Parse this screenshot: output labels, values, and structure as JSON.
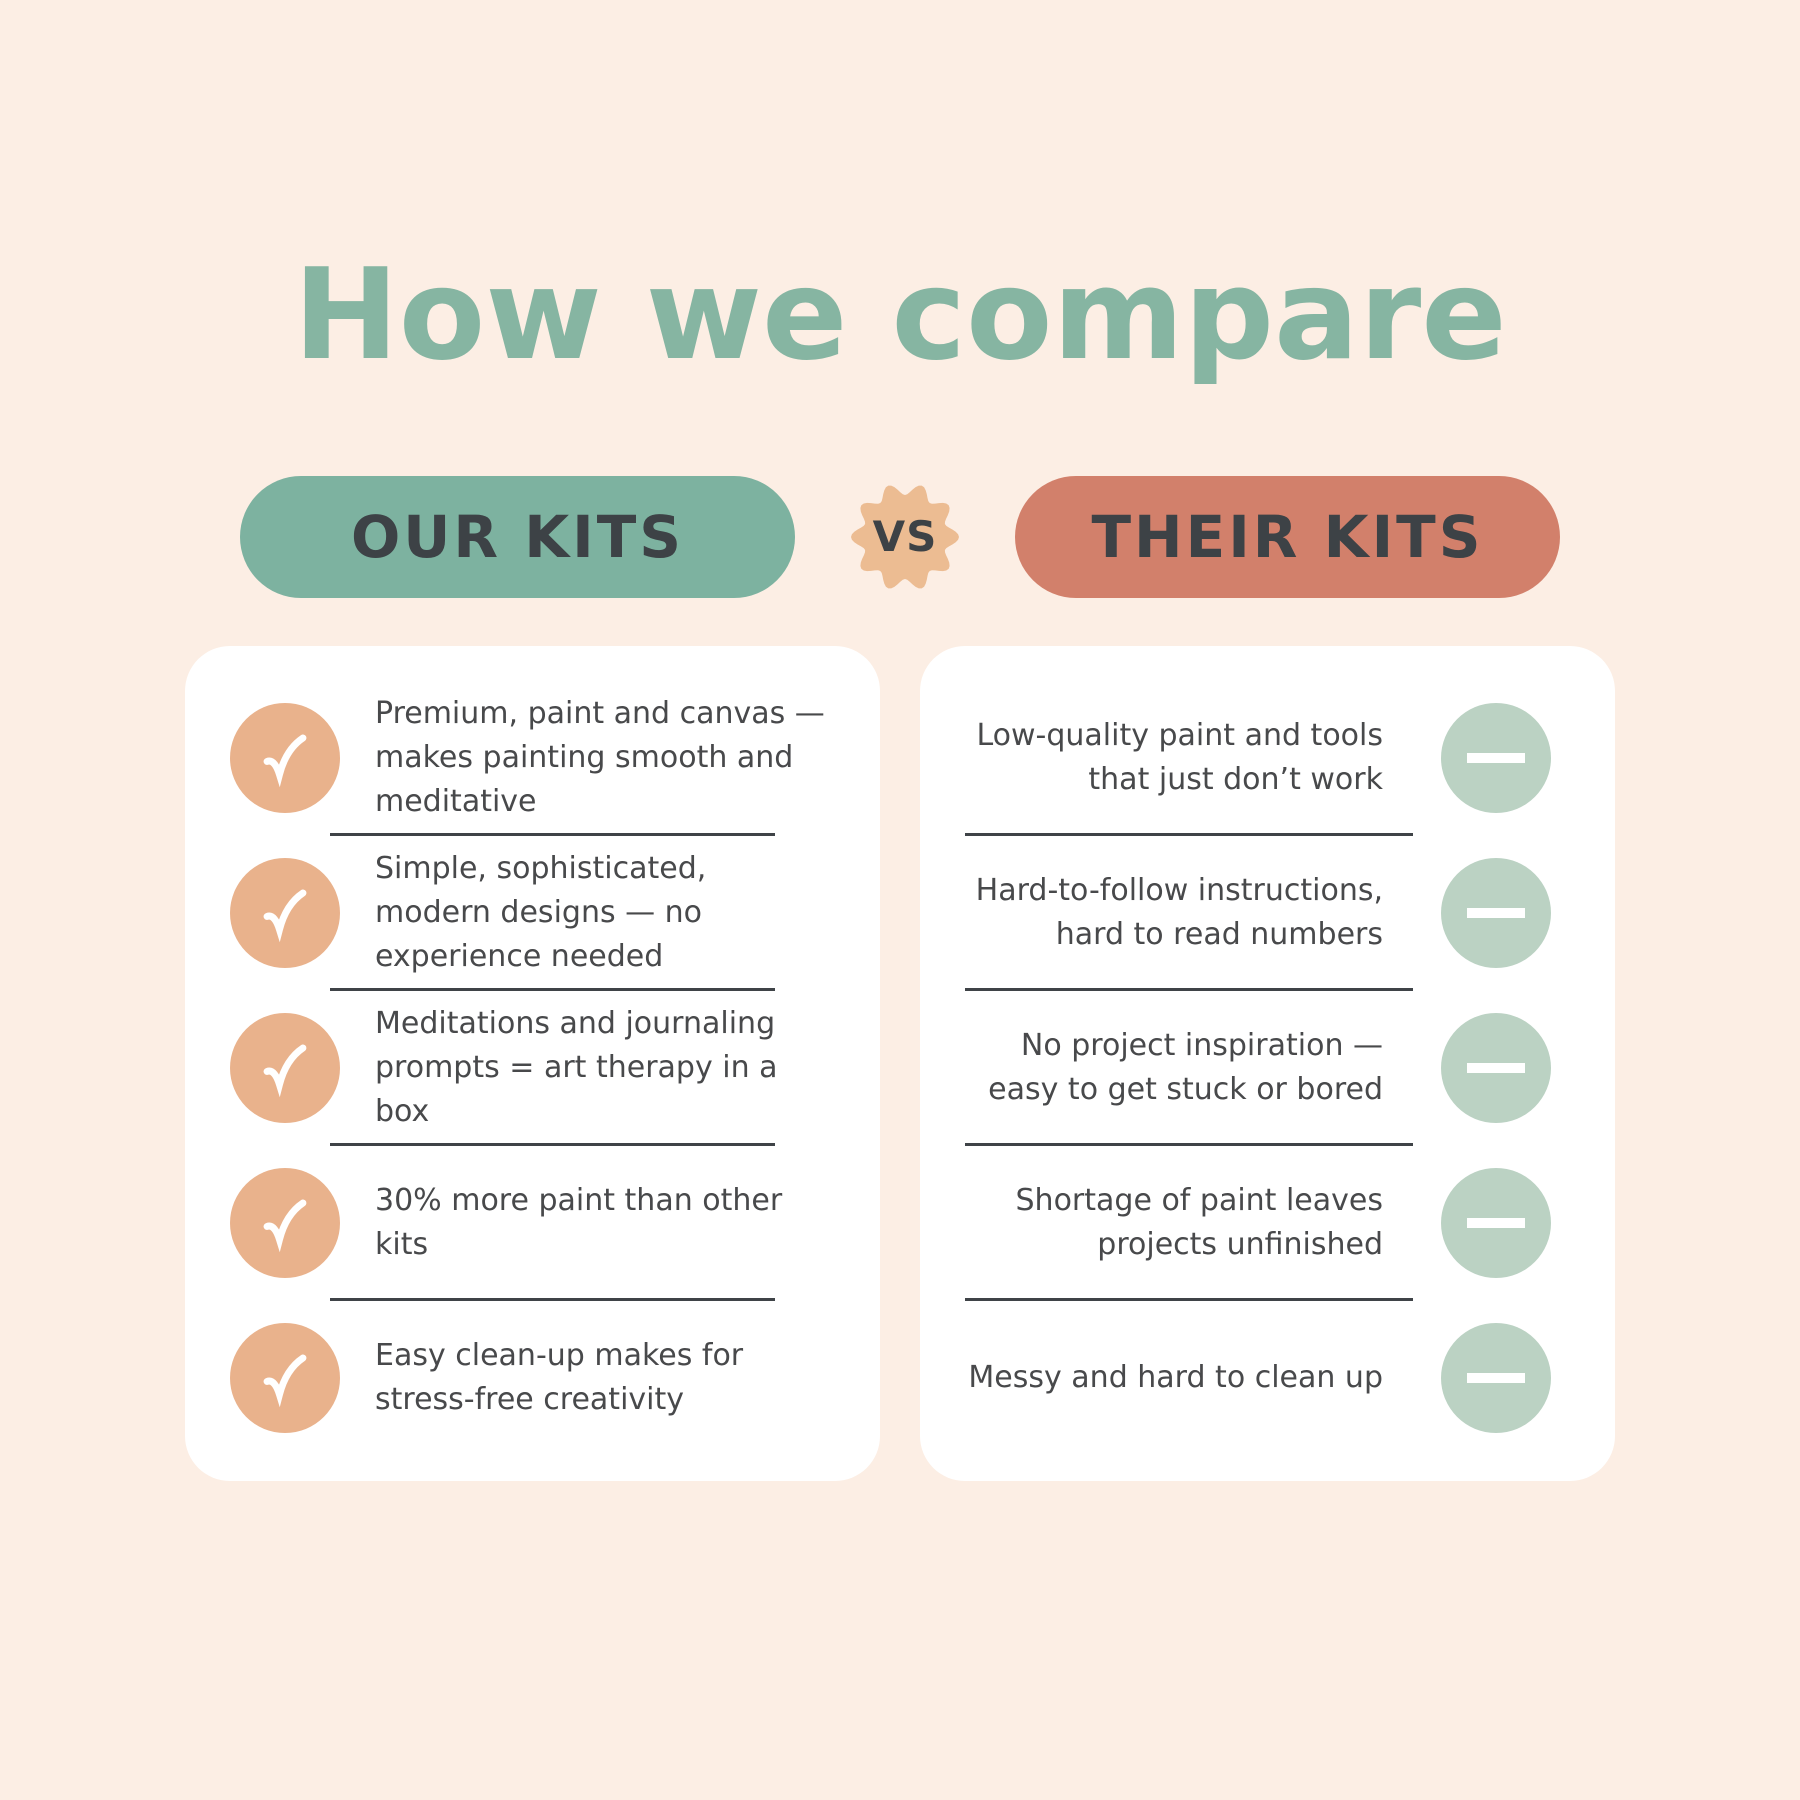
{
  "title": "How we compare",
  "versus": {
    "label": "VS"
  },
  "colors": {
    "background": "#fceee4",
    "title_green": "#86b5a2",
    "our_pill": "#7db2a0",
    "their_pill": "#d2806b",
    "vs_badge": "#ecbc92",
    "check_circle": "#e9b28c",
    "minus_circle": "#bbd2c3",
    "body_text": "#48494b",
    "heading_text": "#3d4246",
    "divider": "#3f4347",
    "card_background": "#ffffff"
  },
  "icons": {
    "ours": "check-icon",
    "theirs": "minus-icon",
    "badge": "scallop-seal-icon"
  },
  "columns": [
    {
      "id": "ours",
      "header": "OUR KITS",
      "items": [
        "Premium, paint and canvas — makes painting smooth and meditative",
        "Simple, sophisticated, modern designs — no experience needed",
        "Meditations and journaling prompts =  art therapy in a box",
        "30% more paint than other kits",
        "Easy clean-up makes for stress-free creativity"
      ]
    },
    {
      "id": "theirs",
      "header": "THEIR KITS",
      "items": [
        "Low-quality paint and tools that just don’t work",
        "Hard-to-follow instructions, hard to read numbers",
        "No project inspiration — easy to get stuck or bored",
        "Shortage of paint leaves projects unfinished",
        "Messy and hard to clean up"
      ]
    }
  ]
}
